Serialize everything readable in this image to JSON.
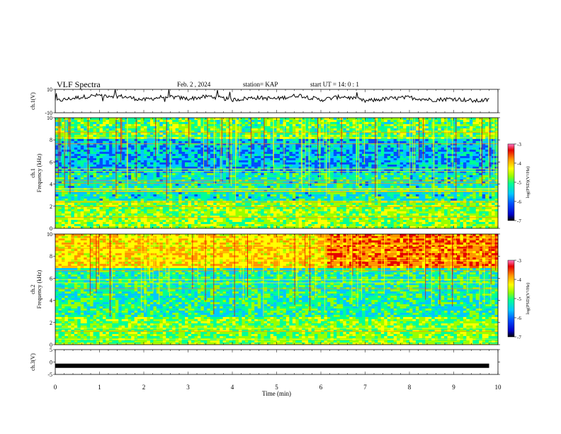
{
  "header": {
    "title": "VLF Spectra",
    "date": "Feb. 2 , 2024",
    "station": "station= KAP",
    "start": "start UT = 14: 0 : 1"
  },
  "colors": {
    "scale": [
      "#000000",
      "#0000c8",
      "#0050ff",
      "#00c8ff",
      "#00ff96",
      "#96ff00",
      "#ffff00",
      "#ff9600",
      "#e60000",
      "#ff78c8"
    ]
  },
  "chart_data": [
    {
      "type": "line",
      "panel": "ch1-waveform",
      "ylabel": "ch.1(V)",
      "ylim": [
        -10,
        10
      ],
      "yticks": [
        "10",
        "-10"
      ],
      "x": [
        0,
        0.5,
        1,
        1.5,
        2,
        2.5,
        3,
        3.5,
        4,
        4.5,
        5,
        5.5,
        6,
        6.5,
        7,
        7.5,
        8,
        8.5,
        9,
        9.5,
        9.8
      ],
      "y": [
        0,
        3,
        5,
        4,
        1,
        4,
        2,
        4,
        1,
        3,
        2,
        5,
        1,
        4,
        0,
        2,
        3,
        1,
        2,
        0,
        1
      ]
    },
    {
      "type": "heatmap",
      "panel": "ch1-spectrogram",
      "ylabel": "ch.1\nFrequency (kHz)",
      "ylim": [
        0,
        10
      ],
      "yticks": [
        "0",
        "2",
        "4",
        "6",
        "8",
        "10"
      ],
      "xlim": [
        0,
        10
      ],
      "colorbar": {
        "label": "log(PSD)(V²/Hz)",
        "ticks": [
          "-3",
          "-4",
          "-5",
          "-6",
          "-7"
        ]
      }
    },
    {
      "type": "heatmap",
      "panel": "ch2-spectrogram",
      "ylabel": "ch.2\nFrequency (kHz)",
      "ylim": [
        0,
        10
      ],
      "yticks": [
        "0",
        "2",
        "4",
        "6",
        "8",
        "10"
      ],
      "xlim": [
        0,
        10
      ],
      "colorbar": {
        "label": "log(PSD)(V²/Hz)",
        "ticks": [
          "-3",
          "-4",
          "-5",
          "-6",
          "-7"
        ]
      }
    },
    {
      "type": "line",
      "panel": "ch3-waveform",
      "ylabel": "ch.3(V)",
      "ylim": [
        -5,
        5
      ],
      "yticks": [
        "5",
        "0",
        "-5"
      ],
      "x": [
        0,
        9.8
      ],
      "y": [
        -1.5,
        -1.5
      ]
    }
  ],
  "xaxis": {
    "label": "Time (min)",
    "ticks": [
      "0",
      "1",
      "2",
      "3",
      "4",
      "5",
      "6",
      "7",
      "8",
      "9",
      "10"
    ]
  }
}
